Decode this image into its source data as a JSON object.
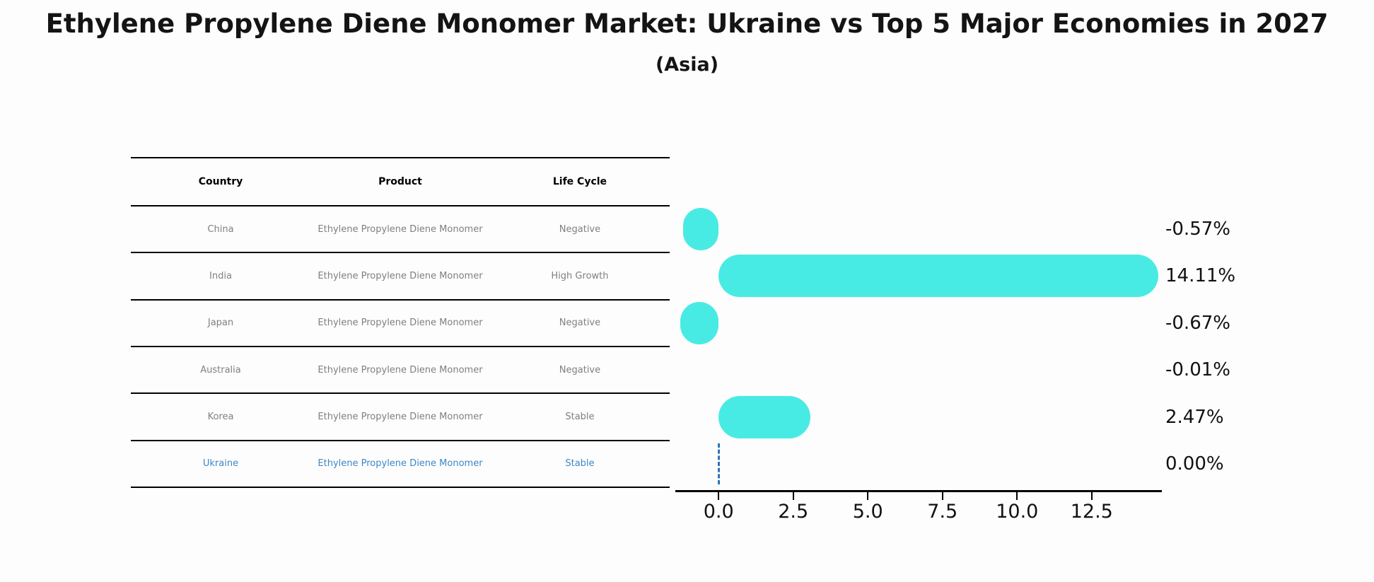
{
  "title": "Ethylene Propylene Diene Monomer Market: Ukraine vs Top 5 Major Economies in 2027",
  "subtitle": "(Asia)",
  "table": {
    "headers": [
      "Country",
      "Product",
      "Life Cycle"
    ],
    "rows": [
      {
        "country": "China",
        "product": "Ethylene Propylene Diene Monomer",
        "life_cycle": "Negative",
        "highlight": false
      },
      {
        "country": "India",
        "product": "Ethylene Propylene Diene Monomer",
        "life_cycle": "High Growth",
        "highlight": false
      },
      {
        "country": "Japan",
        "product": "Ethylene Propylene Diene Monomer",
        "life_cycle": "Negative",
        "highlight": false
      },
      {
        "country": "Australia",
        "product": "Ethylene Propylene Diene Monomer",
        "life_cycle": "Negative",
        "highlight": false
      },
      {
        "country": "Korea",
        "product": "Ethylene Propylene Diene Monomer",
        "life_cycle": "Stable",
        "highlight": false
      },
      {
        "country": "Ukraine",
        "product": "Ethylene Propylene Diene Monomer",
        "life_cycle": "Stable",
        "highlight": true
      }
    ]
  },
  "chart_data": {
    "type": "bar",
    "orientation": "horizontal",
    "title": "Ethylene Propylene Diene Monomer Market: Ukraine vs Top 5 Major Economies in 2027 (Asia)",
    "categories": [
      "China",
      "India",
      "Japan",
      "Australia",
      "Korea",
      "Ukraine"
    ],
    "values": [
      -0.57,
      14.11,
      -0.67,
      -0.01,
      2.47,
      0.0
    ],
    "labels": [
      "-0.57%",
      "14.11%",
      "-0.67%",
      "-0.01%",
      "2.47%",
      "0.00%"
    ],
    "bar_styles": [
      "bar",
      "bar",
      "bar",
      "none",
      "bar",
      "zero-marker"
    ],
    "x_ticks": [
      0.0,
      2.5,
      5.0,
      7.5,
      10.0,
      12.5
    ],
    "x_tick_labels": [
      "0.0",
      "2.5",
      "5.0",
      "7.5",
      "10.0",
      "12.5"
    ],
    "xlim": [
      -1.45,
      14.85
    ],
    "grid": false,
    "value_labels_position": "right",
    "bar_color": "#48EBE4",
    "zero_marker_color": "#2e75b6",
    "highlight_text_color": "#3d87c8",
    "axis_color": "#000000"
  }
}
